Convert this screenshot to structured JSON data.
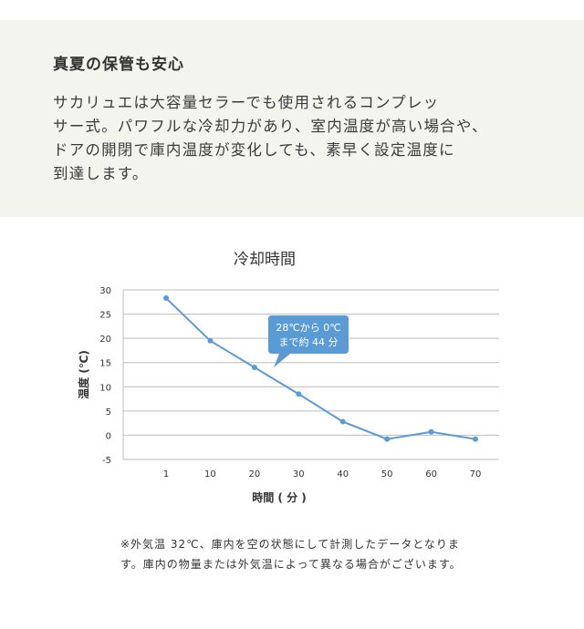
{
  "intro": {
    "heading": "真夏の保管も安心",
    "lines": [
      "サカリュエは大容量セラーでも使用されるコンプレッ",
      "サー式。パワフルな冷却力があり、室内温度が高い場合や、",
      "ドアの開閉で庫内温度が変化しても、素早く設定温度に",
      "到達します。"
    ]
  },
  "chart_data": {
    "type": "line",
    "title": "冷却時間",
    "xlabel": "時間 ( 分 )",
    "ylabel": "温度 (℃)",
    "categories": [
      "1",
      "10",
      "20",
      "30",
      "40",
      "50",
      "60",
      "70"
    ],
    "series": [
      {
        "values": [
          28.3,
          19.5,
          14,
          8.5,
          2.8,
          -0.8,
          0.7,
          -0.8
        ]
      }
    ],
    "ylim": [
      -5,
      30
    ],
    "yticks": [
      30,
      25,
      20,
      15,
      10,
      5,
      0,
      -5
    ],
    "grid": true,
    "line_color": "#5b9bd5",
    "annotation": {
      "lines": [
        "28℃から 0℃",
        "まで約 44 分"
      ],
      "color": "#5b9bd5"
    }
  },
  "note": {
    "lines": [
      "※外気温 32℃、庫内を空の状態にして計測したデータとなりま",
      "す。庫内の物量または外気温によって異なる場合がございます。"
    ]
  }
}
